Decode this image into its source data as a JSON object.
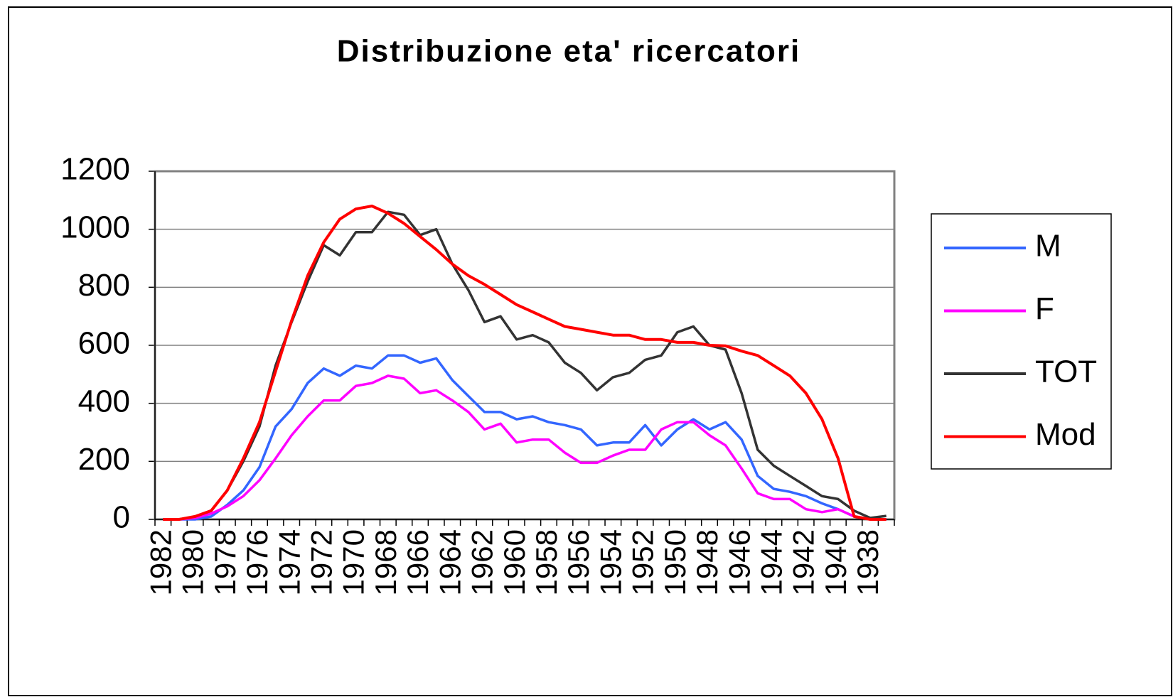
{
  "chart_data": {
    "type": "line",
    "title": "Distribuzione eta' ricercatori",
    "categories": [
      "1982",
      null,
      "1980",
      null,
      "1978",
      null,
      "1976",
      null,
      "1974",
      null,
      "1972",
      null,
      "1970",
      null,
      "1968",
      null,
      "1966",
      null,
      "1964",
      null,
      "1962",
      null,
      "1960",
      null,
      "1958",
      null,
      "1956",
      null,
      "1954",
      null,
      "1952",
      null,
      "1950",
      null,
      "1948",
      null,
      "1946",
      null,
      "1944",
      null,
      "1942",
      null,
      "1940",
      null,
      "1938",
      null
    ],
    "series": [
      {
        "name": "M",
        "color": "#3366ff",
        "values": [
          0,
          0,
          0,
          10,
          50,
          100,
          180,
          320,
          380,
          470,
          520,
          495,
          530,
          520,
          565,
          565,
          540,
          555,
          480,
          425,
          370,
          370,
          345,
          355,
          335,
          325,
          310,
          255,
          265,
          265,
          325,
          255,
          310,
          345,
          310,
          335,
          275,
          150,
          105,
          95,
          80,
          55,
          35,
          10,
          0,
          0
        ]
      },
      {
        "name": "F",
        "color": "#ff00ff",
        "values": [
          0,
          0,
          5,
          20,
          45,
          80,
          135,
          210,
          290,
          355,
          410,
          410,
          460,
          470,
          495,
          485,
          435,
          445,
          410,
          370,
          310,
          330,
          265,
          275,
          275,
          230,
          195,
          195,
          220,
          240,
          240,
          310,
          335,
          335,
          290,
          255,
          175,
          90,
          70,
          70,
          35,
          25,
          35,
          10,
          0,
          0
        ]
      },
      {
        "name": "TOT",
        "color": "#333333",
        "values": [
          0,
          0,
          10,
          30,
          100,
          200,
          320,
          530,
          680,
          820,
          945,
          910,
          990,
          990,
          1060,
          1050,
          980,
          1000,
          880,
          790,
          680,
          700,
          620,
          635,
          610,
          540,
          505,
          445,
          490,
          505,
          550,
          565,
          645,
          665,
          600,
          585,
          435,
          240,
          185,
          150,
          115,
          80,
          70,
          30,
          5,
          12
        ]
      },
      {
        "name": "Mod",
        "color": "#ff0000",
        "values": [
          0,
          0,
          10,
          30,
          100,
          210,
          335,
          510,
          685,
          840,
          955,
          1035,
          1070,
          1080,
          1055,
          1020,
          975,
          930,
          880,
          840,
          810,
          775,
          740,
          715,
          690,
          665,
          655,
          645,
          635,
          635,
          620,
          620,
          610,
          610,
          600,
          598,
          580,
          565,
          530,
          495,
          435,
          345,
          210,
          10,
          0,
          0
        ]
      }
    ],
    "ylim": [
      0,
      1200
    ],
    "yticks": [
      0,
      200,
      400,
      600,
      800,
      1000,
      1200
    ],
    "grid": true,
    "legend": "right"
  }
}
